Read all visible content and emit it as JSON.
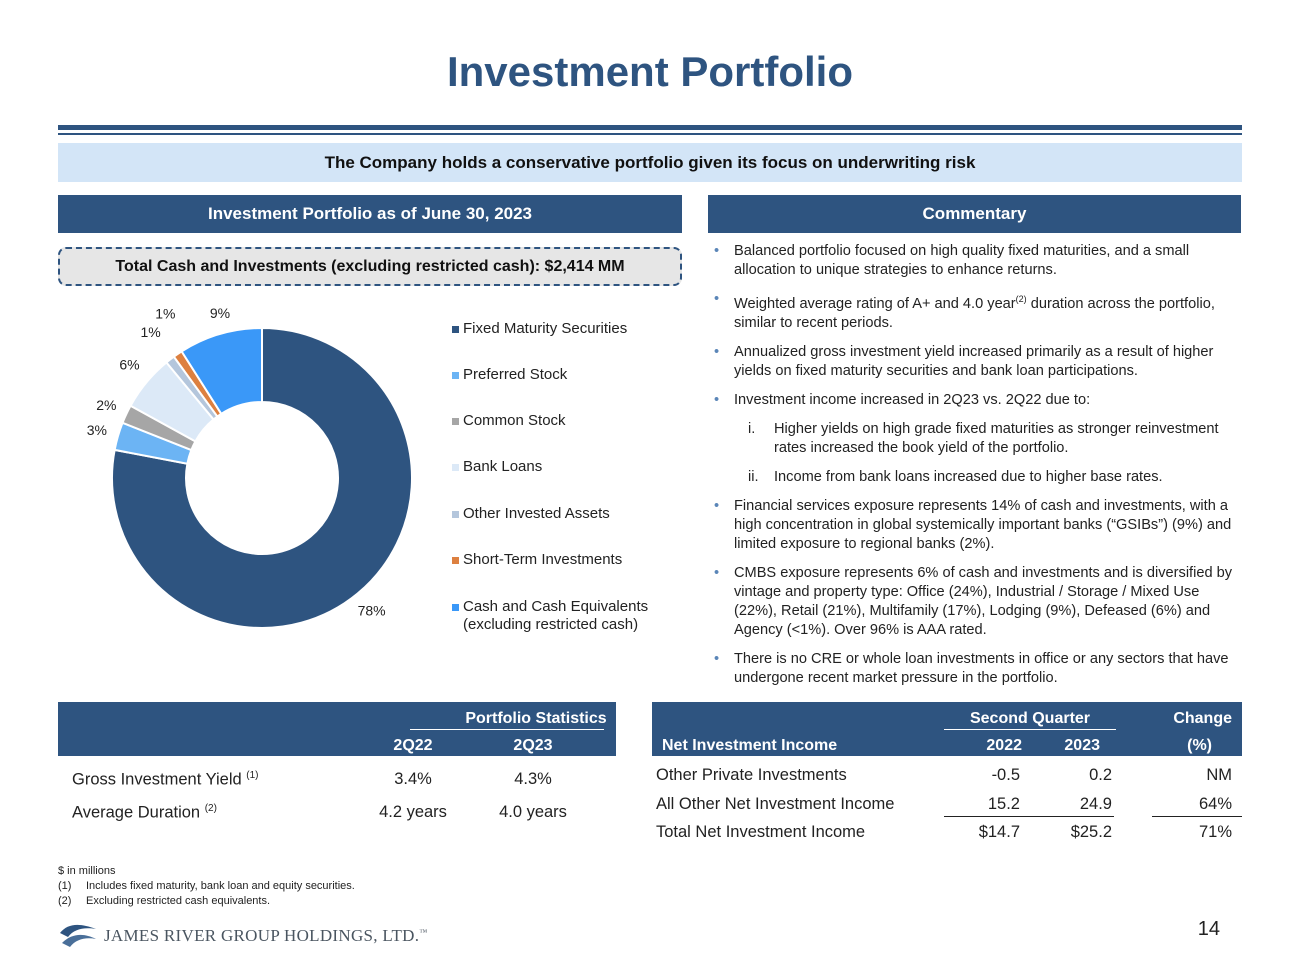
{
  "title": "Investment Portfolio",
  "banner": "The Company holds a conservative portfolio given its focus on underwriting risk",
  "left_header": "Investment Portfolio as of June 30, 2023",
  "right_header": "Commentary",
  "total_box": "Total Cash and Investments (excluding restricted cash): $2,414 MM",
  "chart_data": {
    "type": "pie",
    "donut": true,
    "categories": [
      "Fixed Maturity Securities",
      "Preferred Stock",
      "Common Stock",
      "Bank Loans",
      "Other Invested Assets",
      "Short-Term Investments",
      "Cash and Cash Equivalents (excluding restricted cash)"
    ],
    "values": [
      78,
      3,
      2,
      6,
      1,
      1,
      9
    ],
    "data_labels": [
      "78%",
      "3%",
      "2%",
      "6%",
      "1%",
      "1%",
      "9%"
    ],
    "colors": [
      "#2e5480",
      "#6cb4f4",
      "#a6a6a6",
      "#dce9f7",
      "#b4c6dc",
      "#dd8040",
      "#3a98f8"
    ],
    "legend_labels": [
      "Fixed Maturity Securities",
      "Preferred Stock",
      "Common Stock",
      "Bank Loans",
      "Other Invested Assets",
      "Short-Term Investments",
      "Cash and Cash Equivalents"
    ],
    "legend_label_7_line2": "(excluding restricted cash)",
    "legend_position": "right"
  },
  "commentary": {
    "b1": "Balanced portfolio focused on high quality fixed maturities, and a small allocation to unique strategies to enhance returns.",
    "b2_pre": "Weighted average rating of A+ and 4.0 year",
    "b2_sup": "(2)",
    "b2_post": " duration across the portfolio, similar to recent periods.",
    "b3": "Annualized gross investment yield increased primarily as a result of higher yields on fixed maturity securities and bank loan participations.",
    "b4": "Investment income increased in 2Q23 vs. 2Q22 due to:",
    "s1_num": "i.",
    "s1": "Higher yields on high grade fixed maturities as stronger reinvestment rates increased the book yield of the portfolio.",
    "s2_num": "ii.",
    "s2": "Income from bank loans increased due to higher base rates.",
    "b5": "Financial services exposure represents 14% of cash and investments, with a high concentration in global systemically important banks (“GSIBs”) (9%) and limited exposure to regional banks (2%).",
    "b6": "CMBS exposure represents 6% of cash and investments and is diversified by vintage and property type: Office (24%), Industrial / Storage / Mixed Use (22%), Retail (21%), Multifamily (17%), Lodging (9%), Defeased (6%) and Agency (<1%). Over 96% is AAA rated.",
    "b7": "There is no CRE or whole loan investments in office or any sectors that have undergone recent market pressure in the portfolio."
  },
  "portfolio_stats": {
    "group_header": "Portfolio Statistics",
    "col1": "2Q22",
    "col2": "2Q23",
    "rows": [
      {
        "label": "Gross Investment Yield",
        "sup": "(1)",
        "v1": "3.4%",
        "v2": "4.3%"
      },
      {
        "label": "Average Duration",
        "sup": "(2)",
        "v1": "4.2 years",
        "v2": "4.0 years"
      }
    ]
  },
  "net_income": {
    "row_header": "Net Investment Income",
    "group_header": "Second Quarter",
    "col1": "2022",
    "col2": "2023",
    "change_header_1": "Change",
    "change_header_2": "(%)",
    "rows": [
      {
        "label": "Other Private Investments",
        "a": "-0.5",
        "b": "0.2",
        "c": "NM"
      },
      {
        "label": "All Other Net Investment Income",
        "a": "15.2",
        "b": "24.9",
        "c": "64%"
      },
      {
        "label": "Total Net Investment Income",
        "a": "$14.7",
        "b": "$25.2",
        "c": "71%"
      }
    ]
  },
  "footnotes": {
    "units": "$ in millions",
    "n1": "(1)",
    "f1": "Includes fixed maturity, bank loan and equity securities.",
    "n2": "(2)",
    "f2": "Excluding restricted cash equivalents."
  },
  "logo_text": "JAMES RIVER GROUP HOLDINGS, LTD.",
  "logo_mark": "™",
  "page_number": "14",
  "bullet_glyph": "•"
}
